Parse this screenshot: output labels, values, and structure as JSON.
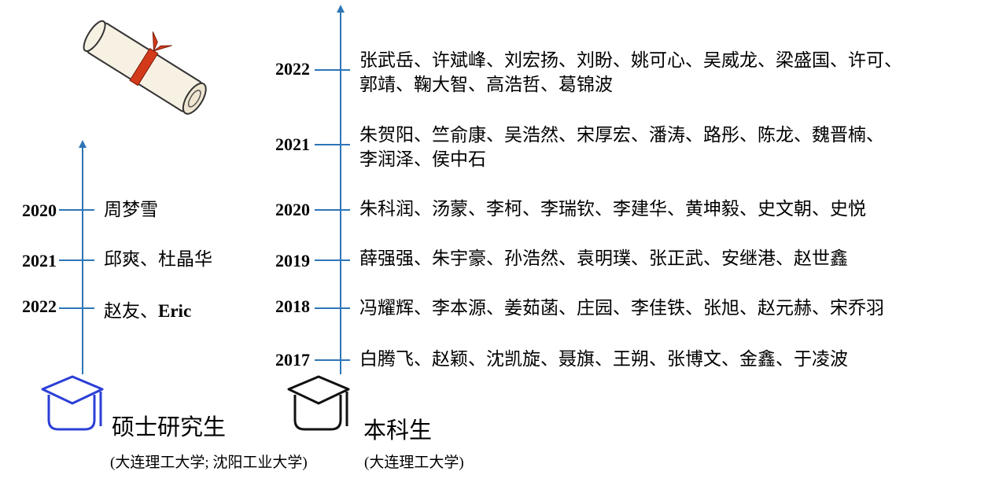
{
  "colors": {
    "axis": "#2e75b6",
    "master_icon": "#2b3fd6",
    "bachelor_icon": "#111111",
    "ribbon": "#d33a1a"
  },
  "icons": {
    "top": "diploma-scroll-icon",
    "master": "graduation-cap-icon",
    "bachelor": "graduation-cap-icon"
  },
  "master": {
    "title": "硕士研究生",
    "schools": "(大连理工大学; 沈阳工业大学)",
    "entries": [
      {
        "year": "2020",
        "names": "周梦雪"
      },
      {
        "year": "2021",
        "names": "邱爽、杜晶华"
      },
      {
        "year": "2022",
        "names_prefix": "赵友、",
        "names_en": "Eric"
      }
    ]
  },
  "bachelor": {
    "title": "本科生",
    "schools": "(大连理工大学)",
    "entries": [
      {
        "year": "2022",
        "line1": "张武岳、许斌峰、刘宏扬、刘盼、姚可心、吴威龙、梁盛国、许可、",
        "line2": "郭靖、鞠大智、高浩哲、葛锦波"
      },
      {
        "year": "2021",
        "line1": "朱贺阳、竺俞康、吴浩然、宋厚宏、潘涛、路彤、陈龙、魏晋楠、",
        "line2": "李润泽、侯中石"
      },
      {
        "year": "2020",
        "line1": "朱科润、汤蒙、李柯、李瑞钦、李建华、黄坤毅、史文朝、史悦"
      },
      {
        "year": "2019",
        "line1": "薛强强、朱宇豪、孙浩然、袁明璞、张正武、安继港、赵世鑫"
      },
      {
        "year": "2018",
        "line1": "冯耀辉、李本源、姜茹菡、庄园、李佳铁、张旭、赵元赫、宋乔羽"
      },
      {
        "year": "2017",
        "line1": "白腾飞、赵颖、沈凯旋、聂旗、王朔、张博文、金鑫、于凌波"
      }
    ]
  }
}
